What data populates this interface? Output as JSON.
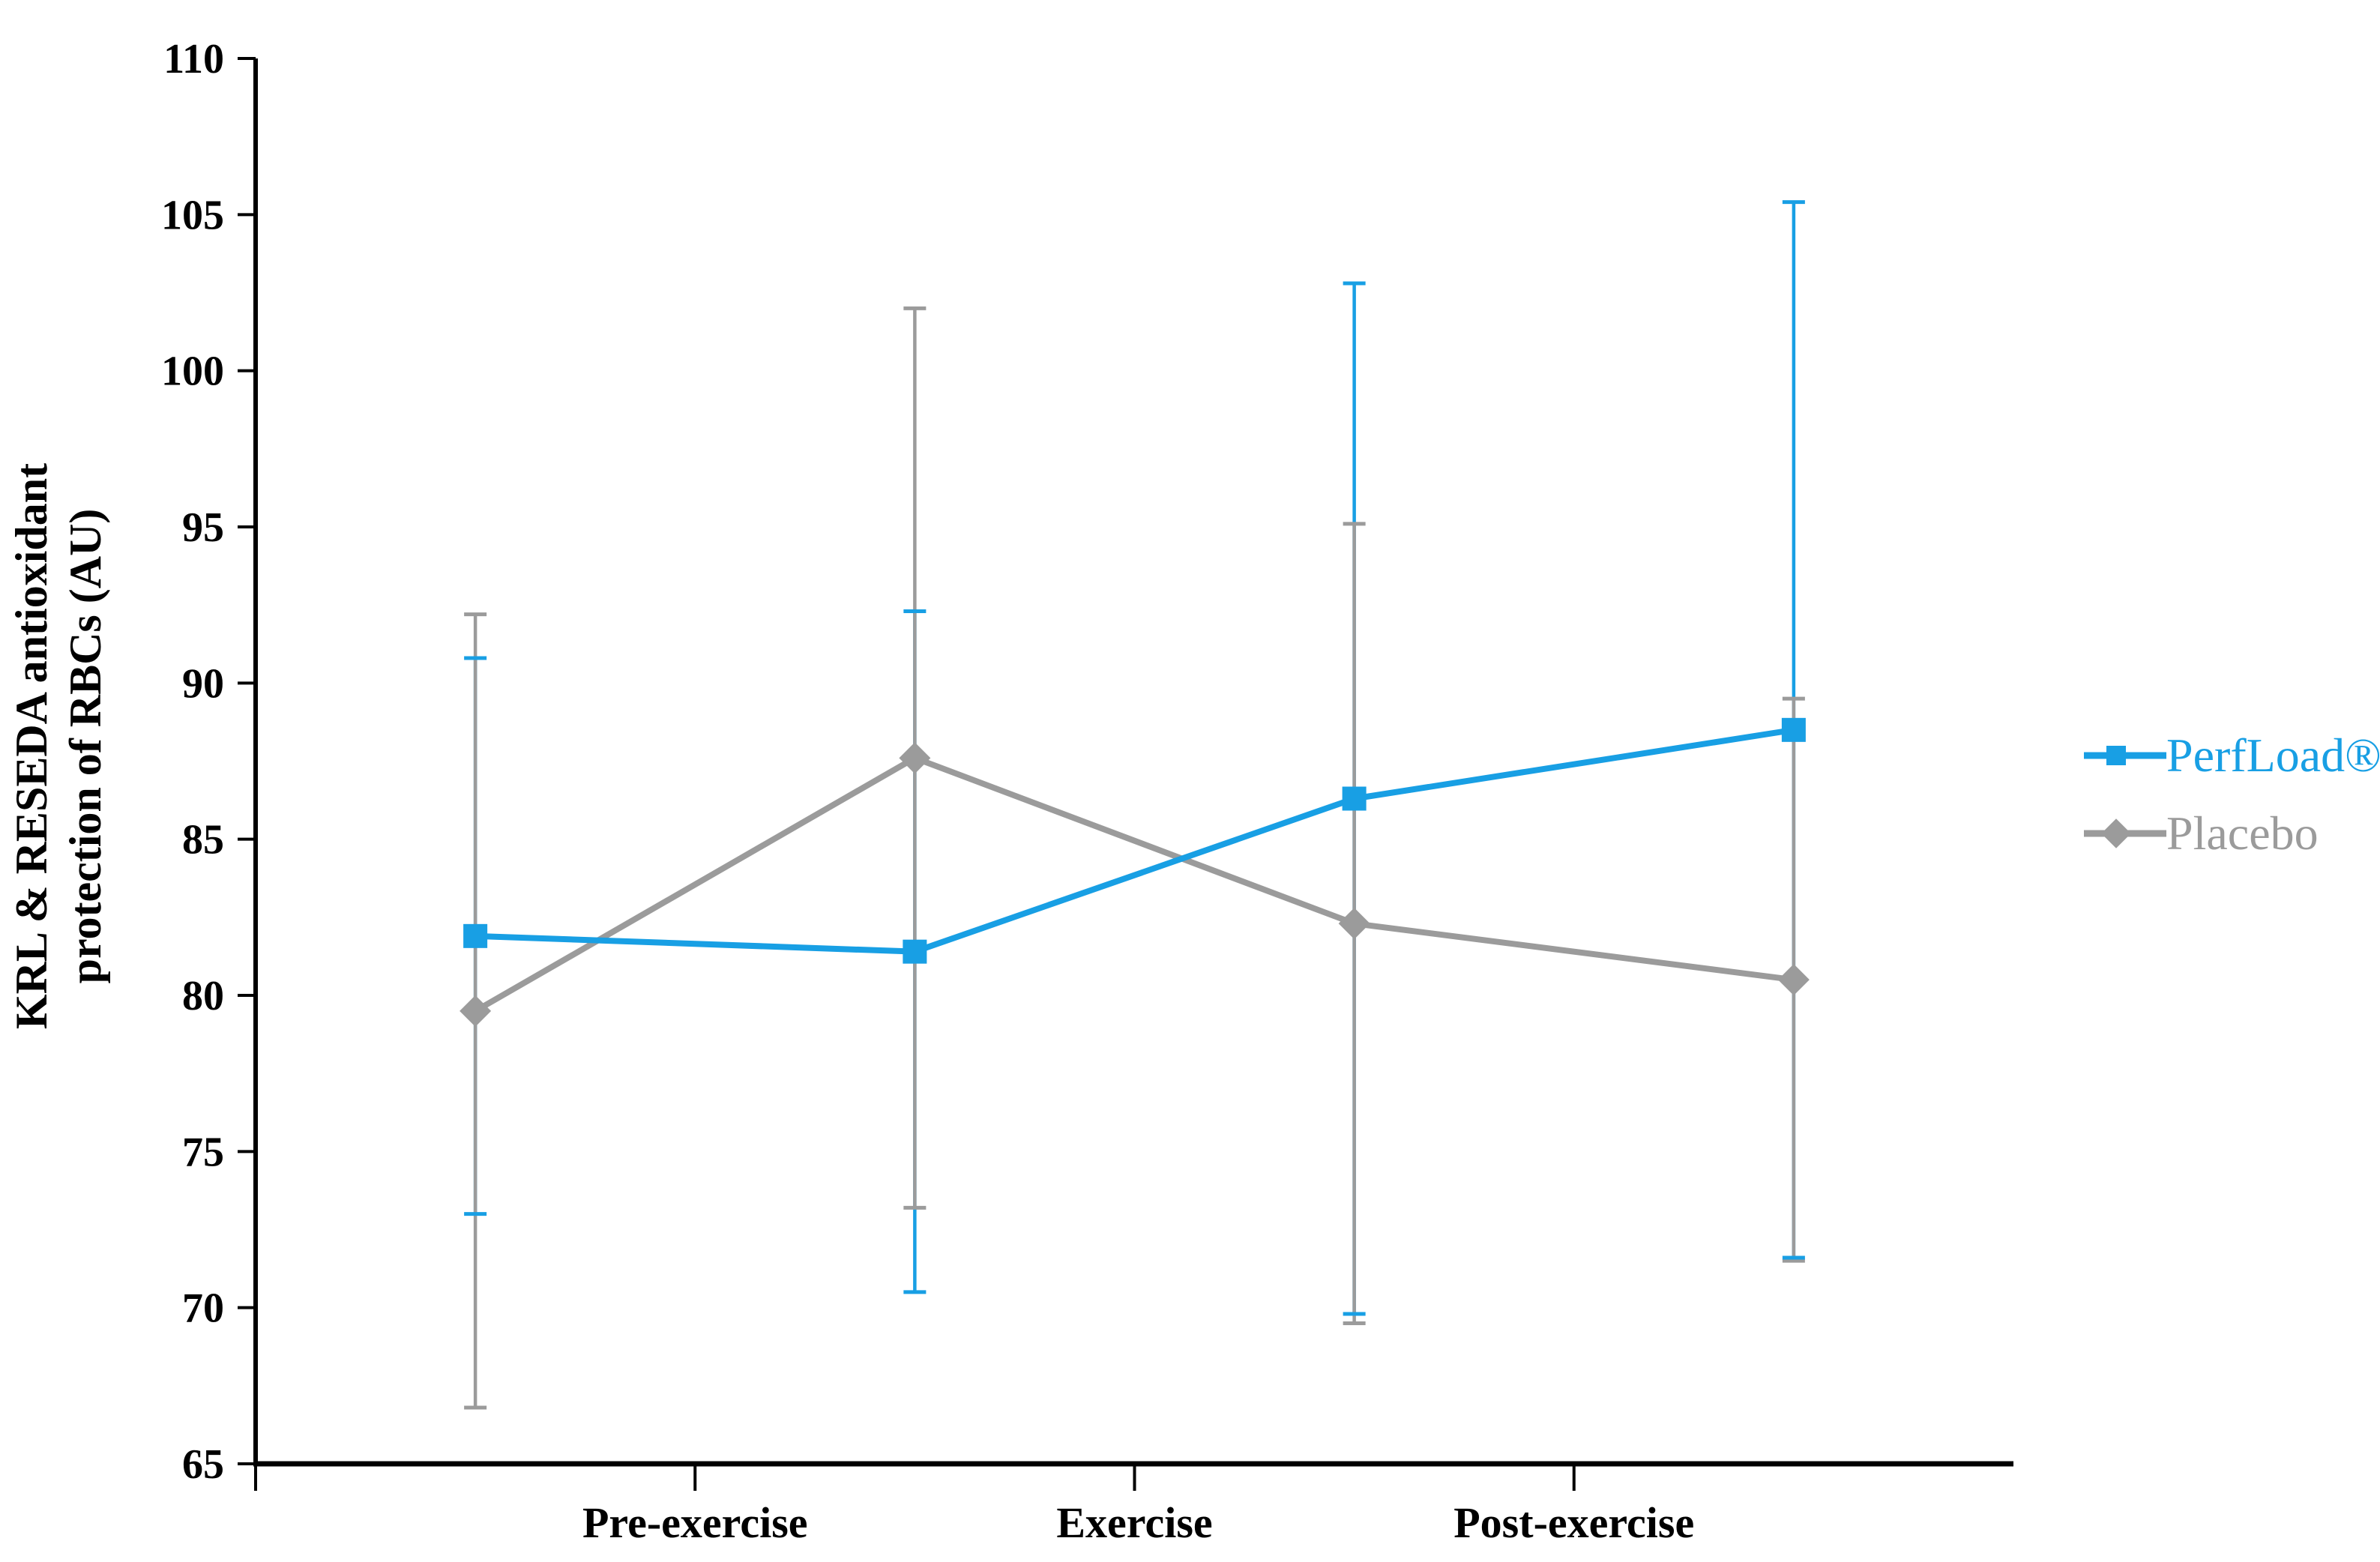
{
  "figure": {
    "background": "#ffffff",
    "axis_color": "#000000",
    "text_color": "#000000"
  },
  "y_axis": {
    "title_line1": "KRL & RESEDA antioxidant",
    "title_line2": "protection of RBCs (AU)",
    "tick_labels": [
      "65",
      "70",
      "75",
      "80",
      "85",
      "90",
      "95",
      "100",
      "105",
      "110"
    ]
  },
  "x_axis": {
    "labels": [
      "Pre-exercise",
      "Exercise",
      "Post-exercise"
    ]
  },
  "legend": {
    "items": [
      {
        "label": "PerfLoad®",
        "color": "#189FE4",
        "marker": "square"
      },
      {
        "label": "Placebo",
        "color": "#9B9B9B",
        "marker": "diamond"
      }
    ]
  },
  "chart_data": {
    "type": "line",
    "x": [
      1,
      2,
      3,
      4
    ],
    "phase_labels": [
      "Pre-exercise",
      "Exercise",
      "Post-exercise"
    ],
    "series": [
      {
        "name": "PerfLoad®",
        "color": "#189FE4",
        "marker": "square",
        "values": [
          81.9,
          81.4,
          86.3,
          88.5
        ],
        "error": [
          8.9,
          10.9,
          16.5,
          16.9
        ]
      },
      {
        "name": "Placebo",
        "color": "#9B9B9B",
        "marker": "diamond",
        "values": [
          79.5,
          87.6,
          82.3,
          80.5
        ],
        "error": [
          12.7,
          14.4,
          12.8,
          9.0
        ]
      }
    ],
    "title": "",
    "xlabel": "",
    "ylabel": "KRL & RESEDA antioxidant protection of RBCs (AU)",
    "ylim": [
      65,
      110
    ],
    "ytick_step": 5,
    "grid": false,
    "legend_position": "right",
    "error_bars": "symmetric-sd"
  }
}
